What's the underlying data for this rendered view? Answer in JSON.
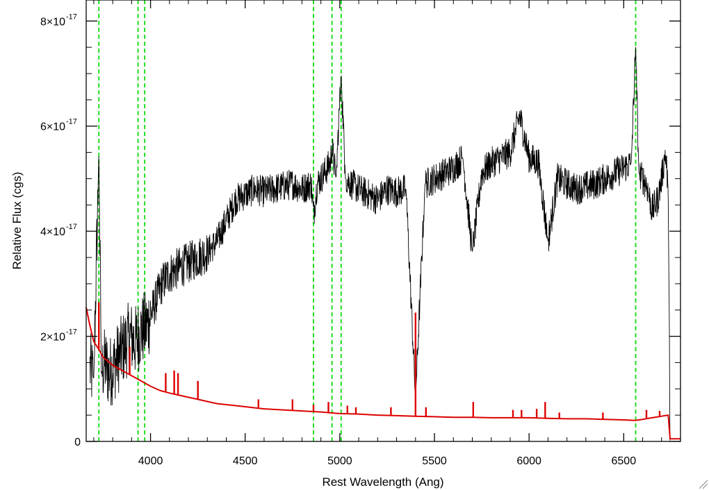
{
  "chart_data": {
    "type": "line",
    "xlabel": "Rest Wavelength (Ang)",
    "ylabel": "Relative Flux (cgs)",
    "xlim": [
      3660,
      6800
    ],
    "ylim": [
      0,
      8.4
    ],
    "y_unit_exponent": -17,
    "x_ticks": [
      4000,
      4500,
      5000,
      5500,
      6000,
      6500
    ],
    "x_tick_labels": [
      "4000",
      "4500",
      "5000",
      "5500",
      "6000",
      "6500"
    ],
    "y_ticks": [
      0,
      2,
      4,
      6,
      8
    ],
    "y_tick_labels": [
      {
        "mantissa": "0",
        "exponent": ""
      },
      {
        "mantissa": "2×10",
        "exponent": "-17"
      },
      {
        "mantissa": "4×10",
        "exponent": "-17"
      },
      {
        "mantissa": "6×10",
        "exponent": "-17"
      },
      {
        "mantissa": "8×10",
        "exponent": "-17"
      }
    ],
    "grid": false,
    "reference_lines": {
      "color": "#22dd22",
      "style": "dashed",
      "x": [
        3727,
        3934,
        3969,
        4861,
        4959,
        5007,
        6563
      ]
    },
    "series": [
      {
        "color": "#000000",
        "noisy": true,
        "x": [
          3680,
          3700,
          3727,
          3740,
          3760,
          3780,
          3800,
          3830,
          3860,
          3890,
          3920,
          3950,
          3980,
          4000,
          4020,
          4040,
          4060,
          4100,
          4150,
          4200,
          4250,
          4300,
          4350,
          4400,
          4450,
          4500,
          4550,
          4600,
          4650,
          4700,
          4750,
          4800,
          4850,
          4861,
          4880,
          4900,
          4950,
          4959,
          4980,
          5007,
          5030,
          5060,
          5100,
          5150,
          5200,
          5250,
          5300,
          5350,
          5400,
          5450,
          5500,
          5550,
          5600,
          5650,
          5700,
          5750,
          5800,
          5850,
          5900,
          5950,
          6000,
          6050,
          6100,
          6150,
          6200,
          6250,
          6300,
          6350,
          6400,
          6450,
          6500,
          6540,
          6563,
          6580,
          6600,
          6620,
          6650,
          6680,
          6700,
          6720,
          6735,
          6745
        ],
        "y": [
          1.4,
          1.2,
          5.5,
          1.3,
          1.5,
          1.3,
          1.4,
          1.6,
          1.8,
          2.0,
          1.9,
          2.1,
          2.2,
          2.4,
          2.6,
          2.8,
          3.0,
          3.2,
          3.3,
          3.4,
          3.5,
          3.6,
          3.8,
          4.2,
          4.6,
          4.7,
          4.8,
          4.75,
          4.8,
          4.85,
          4.9,
          4.8,
          4.9,
          4.3,
          4.9,
          5.0,
          5.3,
          5.6,
          5.0,
          7.0,
          5.0,
          4.9,
          4.8,
          4.7,
          4.6,
          4.8,
          4.75,
          4.8,
          0.8,
          4.9,
          5.0,
          5.1,
          5.2,
          5.4,
          3.6,
          5.1,
          5.3,
          5.4,
          5.5,
          6.2,
          5.4,
          5.3,
          3.8,
          5.0,
          4.9,
          4.8,
          4.85,
          4.9,
          5.0,
          5.1,
          5.2,
          5.3,
          7.5,
          5.1,
          5.0,
          4.9,
          4.4,
          4.6,
          5.0,
          5.5,
          4.8,
          0.0
        ]
      },
      {
        "color": "#dd0000",
        "noisy": false,
        "x": [
          3660,
          3680,
          3700,
          3727,
          3750,
          3800,
          3850,
          3900,
          3950,
          4000,
          4050,
          4100,
          4150,
          4200,
          4250,
          4300,
          4350,
          4400,
          4500,
          4600,
          4700,
          4800,
          4900,
          5000,
          5100,
          5200,
          5300,
          5400,
          5500,
          5600,
          5700,
          5800,
          5900,
          6000,
          6100,
          6200,
          6300,
          6400,
          6500,
          6560,
          6600,
          6650,
          6700,
          6735,
          6745,
          6800
        ],
        "y": [
          2.55,
          2.2,
          1.9,
          1.75,
          1.6,
          1.45,
          1.35,
          1.25,
          1.15,
          1.05,
          0.97,
          0.92,
          0.88,
          0.84,
          0.8,
          0.76,
          0.72,
          0.7,
          0.66,
          0.62,
          0.6,
          0.58,
          0.56,
          0.53,
          0.52,
          0.5,
          0.49,
          0.48,
          0.47,
          0.46,
          0.46,
          0.45,
          0.45,
          0.45,
          0.44,
          0.43,
          0.43,
          0.42,
          0.41,
          0.4,
          0.42,
          0.45,
          0.48,
          0.5,
          0.05,
          0.05
        ],
        "emission_lines": [
          {
            "x": 3727,
            "peak": 2.65
          },
          {
            "x": 3890,
            "peak": 1.8
          },
          {
            "x": 4080,
            "peak": 1.3
          },
          {
            "x": 4125,
            "peak": 1.35
          },
          {
            "x": 4145,
            "peak": 1.3
          },
          {
            "x": 4250,
            "peak": 1.15
          },
          {
            "x": 4570,
            "peak": 0.8
          },
          {
            "x": 4750,
            "peak": 0.8
          },
          {
            "x": 4861,
            "peak": 0.7
          },
          {
            "x": 4940,
            "peak": 0.75
          },
          {
            "x": 5040,
            "peak": 0.68
          },
          {
            "x": 5085,
            "peak": 0.65
          },
          {
            "x": 5270,
            "peak": 0.65
          },
          {
            "x": 5400,
            "peak": 2.45
          },
          {
            "x": 5455,
            "peak": 0.65
          },
          {
            "x": 5705,
            "peak": 0.75
          },
          {
            "x": 5915,
            "peak": 0.6
          },
          {
            "x": 5960,
            "peak": 0.6
          },
          {
            "x": 6040,
            "peak": 0.62
          },
          {
            "x": 6085,
            "peak": 0.75
          },
          {
            "x": 6160,
            "peak": 0.55
          },
          {
            "x": 6390,
            "peak": 0.55
          },
          {
            "x": 6620,
            "peak": 0.6
          },
          {
            "x": 6690,
            "peak": 0.58
          }
        ]
      }
    ]
  }
}
